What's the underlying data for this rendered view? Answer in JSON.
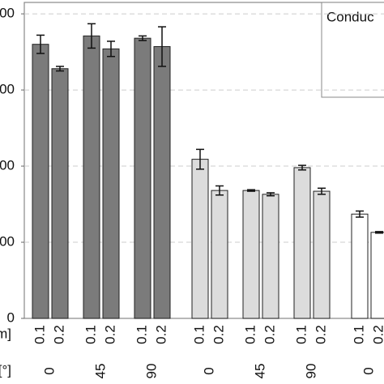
{
  "chart_data": {
    "type": "bar",
    "categories": [
      "0.1",
      "0.2",
      "0.1",
      "0.2",
      "0.1",
      "0.2"
    ],
    "groups": [
      "0",
      "45",
      "90"
    ],
    "x_row_labels": [
      "m]",
      "[°]"
    ],
    "legend_title": "Conduc",
    "series": [
      {
        "color": "#7b7b7b",
        "values": [
          360,
          328,
          371,
          354,
          368,
          357
        ],
        "errors": [
          12,
          3,
          16,
          10,
          3,
          26
        ]
      },
      {
        "color": "#dcdcdc",
        "values": [
          209,
          168,
          168,
          163,
          198,
          167
        ],
        "errors": [
          13,
          6,
          1,
          2,
          3,
          4
        ]
      },
      {
        "color": "#ffffff",
        "values": [
          137,
          113,
          null,
          null,
          null,
          null
        ],
        "errors": [
          4,
          1,
          null,
          null,
          null,
          null
        ]
      }
    ],
    "ylim": [
      0,
      415
    ],
    "yticks": [
      {
        "value": 0,
        "label": "0"
      },
      {
        "value": 100,
        "label": "00"
      },
      {
        "value": 200,
        "label": "00"
      },
      {
        "value": 300,
        "label": "00"
      },
      {
        "value": 400,
        "label": "00"
      }
    ],
    "grid": true
  }
}
